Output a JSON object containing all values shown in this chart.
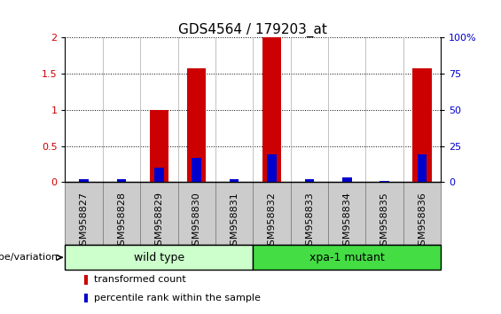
{
  "title": "GDS4564 / 179203_at",
  "samples": [
    "GSM958827",
    "GSM958828",
    "GSM958829",
    "GSM958830",
    "GSM958831",
    "GSM958832",
    "GSM958833",
    "GSM958834",
    "GSM958835",
    "GSM958836"
  ],
  "red_values": [
    0.0,
    0.0,
    1.0,
    1.57,
    0.0,
    2.0,
    0.0,
    0.0,
    0.0,
    1.57
  ],
  "blue_values_pct": [
    2.0,
    2.0,
    10.0,
    17.0,
    2.0,
    19.0,
    2.0,
    3.0,
    1.0,
    19.0
  ],
  "ylim_left": [
    0,
    2
  ],
  "ylim_right": [
    0,
    100
  ],
  "yticks_left": [
    0,
    0.5,
    1.0,
    1.5,
    2.0
  ],
  "yticks_right": [
    0,
    25,
    50,
    75,
    100
  ],
  "ytick_labels_left": [
    "0",
    "0.5",
    "1",
    "1.5",
    "2"
  ],
  "ytick_labels_right": [
    "0",
    "25",
    "50",
    "75",
    "100%"
  ],
  "group1_label": "wild type",
  "group2_label": "xpa-1 mutant",
  "group1_samples": 5,
  "group2_samples": 5,
  "group_label_prefix": "genotype/variation",
  "legend_red": "transformed count",
  "legend_blue": "percentile rank within the sample",
  "red_color": "#cc0000",
  "blue_color": "#0000cc",
  "red_bar_width": 0.5,
  "blue_bar_width": 0.25,
  "group1_color": "#ccffcc",
  "group2_color": "#44dd44",
  "tick_label_color_left": "#cc0000",
  "tick_label_color_right": "#0000cc",
  "title_fontsize": 11,
  "tick_fontsize": 8,
  "legend_fontsize": 8,
  "sample_col_color": "#cccccc",
  "sample_col_edge": "#888888"
}
